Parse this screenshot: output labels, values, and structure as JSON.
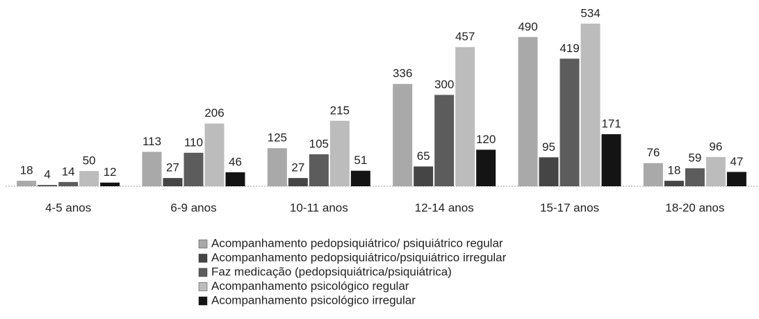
{
  "chart_data": {
    "type": "bar",
    "categories": [
      "4-5 anos",
      "6-9 anos",
      "10-11 anos",
      "12-14 anos",
      "15-17 anos",
      "18-20 anos"
    ],
    "series": [
      {
        "name": "Acompanhamento pedopsiquiátrico/ psiquiátrico regular",
        "color": "#a9a9a9",
        "values": [
          18,
          113,
          125,
          336,
          490,
          76
        ]
      },
      {
        "name": "Acompanhamento pedopsiquiátrico/psiquiátrico irregular",
        "color": "#454545",
        "values": [
          4,
          27,
          27,
          65,
          95,
          18
        ]
      },
      {
        "name": "Faz medicação (pedopsiquiátrica/psiquiátrica)",
        "color": "#5c5c5c",
        "values": [
          14,
          110,
          105,
          300,
          419,
          59
        ]
      },
      {
        "name": "Acompanhamento psicológico regular",
        "color": "#bcbcbc",
        "values": [
          50,
          206,
          215,
          457,
          534,
          96
        ]
      },
      {
        "name": "Acompanhamento psicológico irregular",
        "color": "#141414",
        "values": [
          12,
          46,
          51,
          120,
          171,
          47
        ]
      }
    ]
  }
}
